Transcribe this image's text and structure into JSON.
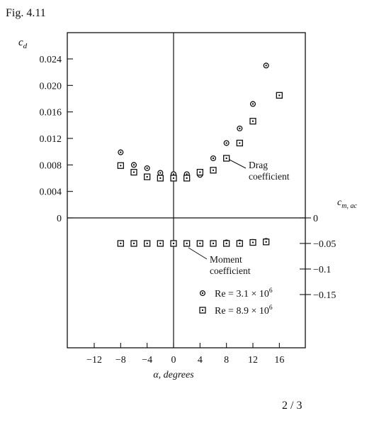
{
  "figure_label": "Fig. 4.11",
  "page_number": "2 / 3",
  "chart_data": {
    "type": "scatter",
    "xlabel": "α, degrees",
    "x_ticks": [
      -12,
      -8,
      -4,
      0,
      4,
      8,
      12,
      16
    ],
    "xlim": [
      -16,
      20
    ],
    "left_axis": {
      "label_main": "c",
      "label_sub": "d",
      "ticks": [
        0,
        0.004,
        0.008,
        0.012,
        0.016,
        0.02,
        0.024
      ],
      "tick_labels": [
        "0",
        "0.004",
        "0.008",
        "0.012",
        "0.016",
        "0.020",
        "0.024"
      ]
    },
    "right_axis": {
      "label_main": "c",
      "label_sub": "m, ac",
      "ticks": [
        0,
        -0.05,
        -0.1,
        -0.15
      ],
      "tick_labels": [
        "0",
        "−0.05",
        "−0.1",
        "−0.15"
      ]
    },
    "annotations": {
      "drag_line1": "Drag",
      "drag_line2": "coefficient",
      "moment_line1": "Moment",
      "moment_line2": "coefficient"
    },
    "legend": {
      "placement": "bottom-right",
      "entries": [
        {
          "marker": "circle-dot",
          "base": "Re = 3.1 × 10",
          "exp": "6"
        },
        {
          "marker": "square-dot",
          "base": "Re = 8.9 × 10",
          "exp": "6"
        }
      ]
    },
    "series": [
      {
        "name": "Re = 3.1 × 10^6",
        "marker": "circle-dot",
        "drag": {
          "x": [
            -8,
            -6,
            -4,
            -2,
            0,
            2,
            4,
            6,
            8,
            10,
            12,
            14
          ],
          "y": [
            0.0099,
            0.008,
            0.0075,
            0.0068,
            0.0066,
            0.0066,
            0.0065,
            0.009,
            0.0113,
            0.0135,
            0.0172,
            0.023
          ]
        },
        "moment": {
          "x": [
            -8,
            -6,
            -4,
            -2,
            0,
            2,
            4,
            6,
            8,
            10,
            12,
            14
          ],
          "y": [
            -0.05,
            -0.05,
            -0.05,
            -0.05,
            -0.05,
            -0.05,
            -0.05,
            -0.05,
            -0.048,
            -0.048,
            -0.047,
            -0.045
          ]
        }
      },
      {
        "name": "Re = 8.9 × 10^6",
        "marker": "square-dot",
        "drag": {
          "x": [
            -8,
            -6,
            -4,
            -2,
            0,
            2,
            4,
            6,
            8,
            10,
            12,
            16
          ],
          "y": [
            0.0079,
            0.0069,
            0.0062,
            0.006,
            0.006,
            0.006,
            0.0069,
            0.0072,
            0.009,
            0.0113,
            0.0146,
            0.0185
          ]
        },
        "moment": {
          "x": [
            -8,
            -6,
            -4,
            -2,
            0,
            2,
            4,
            6,
            8,
            10,
            12,
            14
          ],
          "y": [
            -0.05,
            -0.05,
            -0.05,
            -0.05,
            -0.05,
            -0.05,
            -0.05,
            -0.05,
            -0.05,
            -0.05,
            -0.048,
            -0.047
          ]
        }
      }
    ]
  }
}
